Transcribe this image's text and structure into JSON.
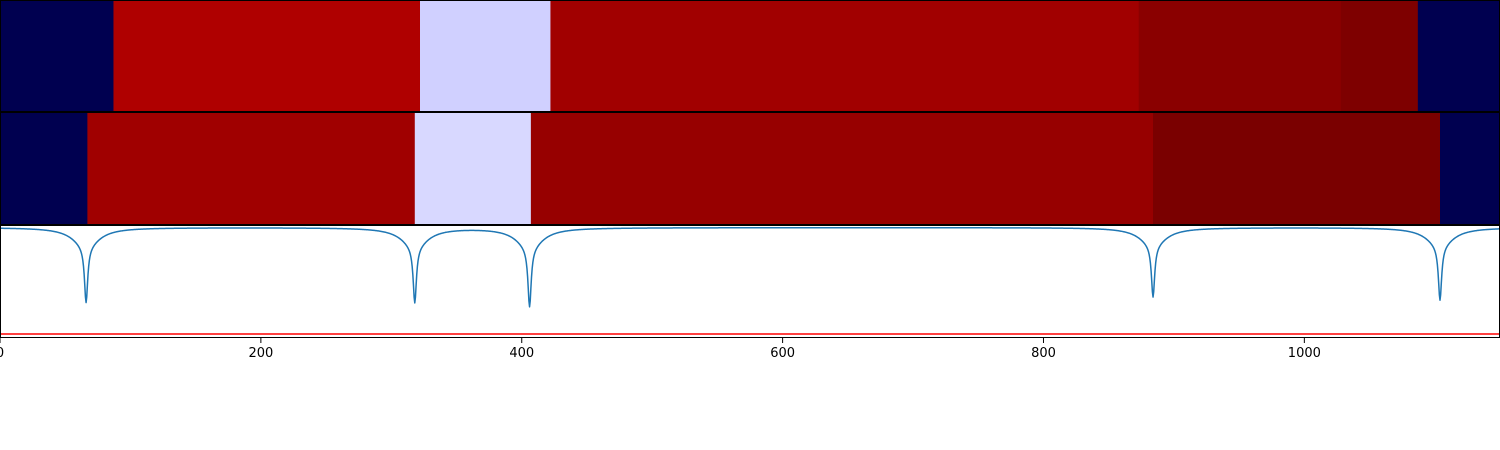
{
  "chart_data": [
    {
      "type": "heatmap",
      "title": "",
      "segments": [
        {
          "start": 0,
          "end": 87,
          "color": "#000050"
        },
        {
          "start": 87,
          "end": 322,
          "color": "#af0000"
        },
        {
          "start": 322,
          "end": 422,
          "color": "#d0d0ff"
        },
        {
          "start": 422,
          "end": 873,
          "color": "#a10000"
        },
        {
          "start": 873,
          "end": 1028,
          "color": "#8a0000"
        },
        {
          "start": 1028,
          "end": 1087,
          "color": "#7e0000"
        },
        {
          "start": 1087,
          "end": 1150,
          "color": "#000050"
        }
      ]
    },
    {
      "type": "heatmap",
      "title": "",
      "segments": [
        {
          "start": 0,
          "end": 67,
          "color": "#000050"
        },
        {
          "start": 67,
          "end": 318,
          "color": "#a00000"
        },
        {
          "start": 318,
          "end": 407,
          "color": "#d8d8ff"
        },
        {
          "start": 407,
          "end": 884,
          "color": "#970000"
        },
        {
          "start": 884,
          "end": 1104,
          "color": "#7a0000"
        },
        {
          "start": 1104,
          "end": 1150,
          "color": "#000050"
        }
      ]
    },
    {
      "type": "line",
      "title": "",
      "xlabel": "",
      "ylabel": "",
      "xlim": [
        0,
        1150
      ],
      "ylim": [
        -1.4,
        0.02
      ],
      "xticks": [
        0,
        200,
        400,
        600,
        800,
        1000
      ],
      "xtick_labels": [
        "0",
        "200",
        "400",
        "600",
        "800",
        "1000"
      ],
      "dips": [
        {
          "x": 66,
          "depth": 0.95
        },
        {
          "x": 318,
          "depth": 0.95
        },
        {
          "x": 406,
          "depth": 1.0
        },
        {
          "x": 884,
          "depth": 0.88
        },
        {
          "x": 1104,
          "depth": 0.92
        }
      ],
      "series": [
        {
          "color": "#1f77b4"
        }
      ],
      "threshold": {
        "value": -1.35,
        "color": "#ff0000"
      }
    }
  ]
}
